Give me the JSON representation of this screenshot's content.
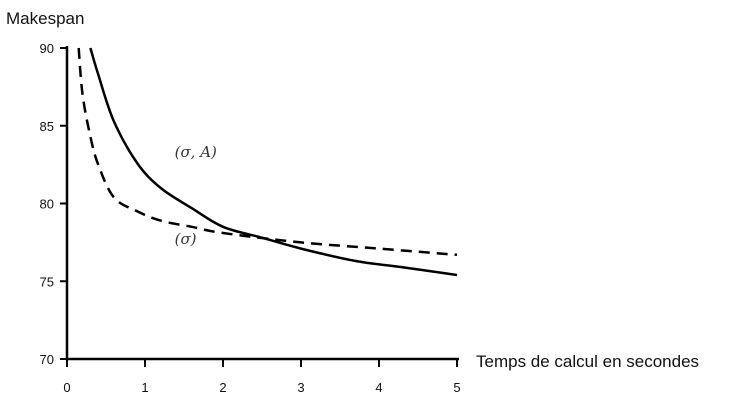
{
  "chart_data": {
    "type": "line",
    "title": "",
    "xlabel": "Temps de calcul en secondes",
    "ylabel": "Makespan",
    "xlim": [
      0,
      5
    ],
    "ylim": [
      70,
      90
    ],
    "xticks": [
      "0",
      "1",
      "2",
      "3",
      "4",
      "5"
    ],
    "yticks": [
      "70",
      "75",
      "80",
      "85",
      "90"
    ],
    "grid": false,
    "series": [
      {
        "name": "(σ, A)",
        "style": "solid",
        "color": "#000000",
        "x": [
          0.3,
          0.4,
          0.6,
          0.9,
          1.2,
          1.6,
          2.0,
          2.5,
          3.0,
          3.7,
          4.3,
          5.0
        ],
        "y": [
          90,
          88.3,
          85.3,
          82.6,
          81.0,
          79.7,
          78.5,
          77.8,
          77.1,
          76.3,
          75.9,
          75.4
        ]
      },
      {
        "name": "(σ)",
        "style": "dashed",
        "color": "#000000",
        "x": [
          0.15,
          0.2,
          0.3,
          0.4,
          0.6,
          0.9,
          1.2,
          1.6,
          2.0,
          3.0,
          4.0,
          5.0
        ],
        "y": [
          90,
          87.0,
          84.3,
          82.5,
          80.4,
          79.5,
          78.9,
          78.5,
          78.1,
          77.5,
          77.1,
          76.7
        ]
      }
    ],
    "curve_labels": [
      {
        "text": "(σ, A)",
        "x": 1.2,
        "y": 83.0
      },
      {
        "text": "(σ)",
        "x": 1.2,
        "y": 77.4
      }
    ]
  }
}
